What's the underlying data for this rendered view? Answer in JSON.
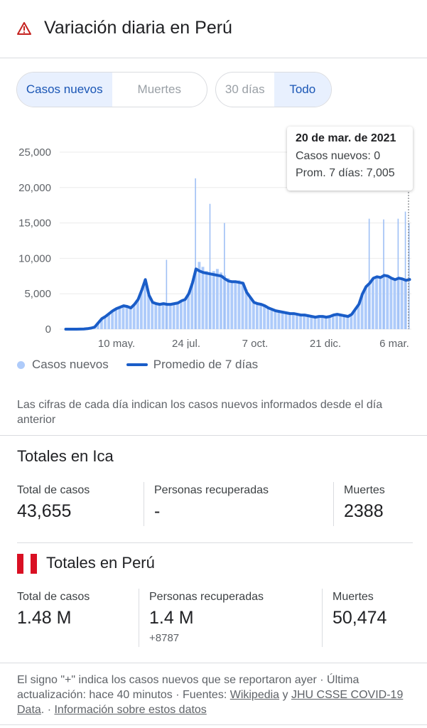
{
  "header": {
    "title": "Variación diaria en Perú",
    "icon": "warning-icon"
  },
  "metric_tabs": [
    {
      "label": "Casos nuevos",
      "active": true
    },
    {
      "label": "Muertes",
      "active": false
    }
  ],
  "range_tabs": [
    {
      "label": "30 días",
      "active": false
    },
    {
      "label": "Todo",
      "active": true
    }
  ],
  "tooltip": {
    "date": "20 de mar. de 2021",
    "cases": "Casos nuevos: 0",
    "avg": "Prom. 7 días: 7,005"
  },
  "chart_data": {
    "type": "bar",
    "title": "",
    "xlabel": "",
    "ylabel": "",
    "ylim": [
      0,
      25000
    ],
    "yticks": [
      "25,000",
      "20,000",
      "15,000",
      "10,000",
      "5,000",
      "0"
    ],
    "xticks": [
      "10 may.",
      "24 jul.",
      "7 oct.",
      "21 dic.",
      "6 mar."
    ],
    "grid": true,
    "legend_position": "bottom",
    "series": [
      {
        "name": "Casos nuevos",
        "kind": "bar",
        "color": "#aecbfa",
        "values": [
          0,
          0,
          0,
          0,
          10,
          30,
          70,
          150,
          300,
          900,
          1500,
          1800,
          2200,
          2600,
          2900,
          3100,
          3300,
          3200,
          3000,
          3500,
          4200,
          5500,
          7000,
          4800,
          3800,
          3600,
          3500,
          3600,
          3500,
          3500,
          3600,
          3700,
          4000,
          4200,
          5000,
          6500,
          8500,
          9500,
          8800,
          8200,
          7800,
          8200,
          8500,
          8000,
          7600,
          7200,
          6800,
          6700,
          6900,
          6600,
          5600,
          4500,
          3800,
          3600,
          3500,
          3300,
          3000,
          2800,
          2600,
          2500,
          2400,
          2300,
          2200,
          2200,
          2100,
          2000,
          2000,
          1900,
          1800,
          1700,
          1800,
          1800,
          1700,
          1800,
          2000,
          2100,
          2000,
          1900,
          1800,
          2100,
          2800,
          3500,
          5000,
          6000,
          6500,
          7200,
          7400,
          7300,
          7600,
          7500,
          7200,
          7000,
          7200,
          7100,
          6900,
          0
        ]
      },
      {
        "name": "Promedio de 7 días",
        "kind": "line",
        "color": "#1a5dc8",
        "values": [
          0,
          0,
          0,
          0,
          10,
          30,
          70,
          150,
          300,
          900,
          1500,
          1800,
          2200,
          2600,
          2900,
          3100,
          3300,
          3200,
          3000,
          3500,
          4200,
          5500,
          7000,
          4800,
          3800,
          3600,
          3500,
          3600,
          3500,
          3500,
          3600,
          3700,
          4000,
          4200,
          5000,
          6500,
          8500,
          8200,
          8000,
          7900,
          7800,
          7700,
          7600,
          7500,
          7100,
          6800,
          6700,
          6700,
          6600,
          6500,
          5200,
          4500,
          3800,
          3600,
          3500,
          3300,
          3000,
          2800,
          2600,
          2500,
          2400,
          2300,
          2200,
          2200,
          2100,
          2000,
          2000,
          1900,
          1800,
          1700,
          1800,
          1800,
          1700,
          1800,
          2000,
          2100,
          2000,
          1900,
          1800,
          2100,
          2800,
          3500,
          5000,
          6000,
          6500,
          7200,
          7400,
          7300,
          7600,
          7500,
          7200,
          7000,
          7200,
          7100,
          6900,
          7005
        ]
      }
    ],
    "spikes": [
      {
        "index": 36,
        "value": 21300
      },
      {
        "index": 40,
        "value": 17700
      },
      {
        "index": 44,
        "value": 15000
      },
      {
        "index": 28,
        "value": 9800
      },
      {
        "index": 84,
        "value": 15600
      },
      {
        "index": 88,
        "value": 15500
      },
      {
        "index": 92,
        "value": 15600
      },
      {
        "index": 94,
        "value": 16600
      },
      {
        "index": 95,
        "value": 15000
      }
    ]
  },
  "legend": {
    "bars": "Casos nuevos",
    "line": "Promedio de 7 días"
  },
  "note": "Las cifras de cada día indican los casos nuevos informados desde el día anterior",
  "ica": {
    "title": "Totales en Ica",
    "cases_label": "Total de casos",
    "cases_value": "43,655",
    "recovered_label": "Personas recuperadas",
    "recovered_value": "-",
    "deaths_label": "Muertes",
    "deaths_value": "2388"
  },
  "peru": {
    "title": "Totales en Perú",
    "flag_colors": [
      "#d91023",
      "#ffffff",
      "#d91023"
    ],
    "cases_label": "Total de casos",
    "cases_value": "1.48 M",
    "recovered_label": "Personas recuperadas",
    "recovered_value": "1.4 M",
    "recovered_delta": "+8787",
    "deaths_label": "Muertes",
    "deaths_value": "50,474"
  },
  "footer": {
    "text1": "El signo \"+\" indica los casos nuevos que se reportaron ayer · Última actualización: hace 40 minutos · Fuentes: ",
    "link1": "Wikipedia",
    "and": " y ",
    "link2": "JHU CSSE COVID-19 Data",
    "sep": ". · ",
    "link3": "Información sobre estos datos"
  }
}
